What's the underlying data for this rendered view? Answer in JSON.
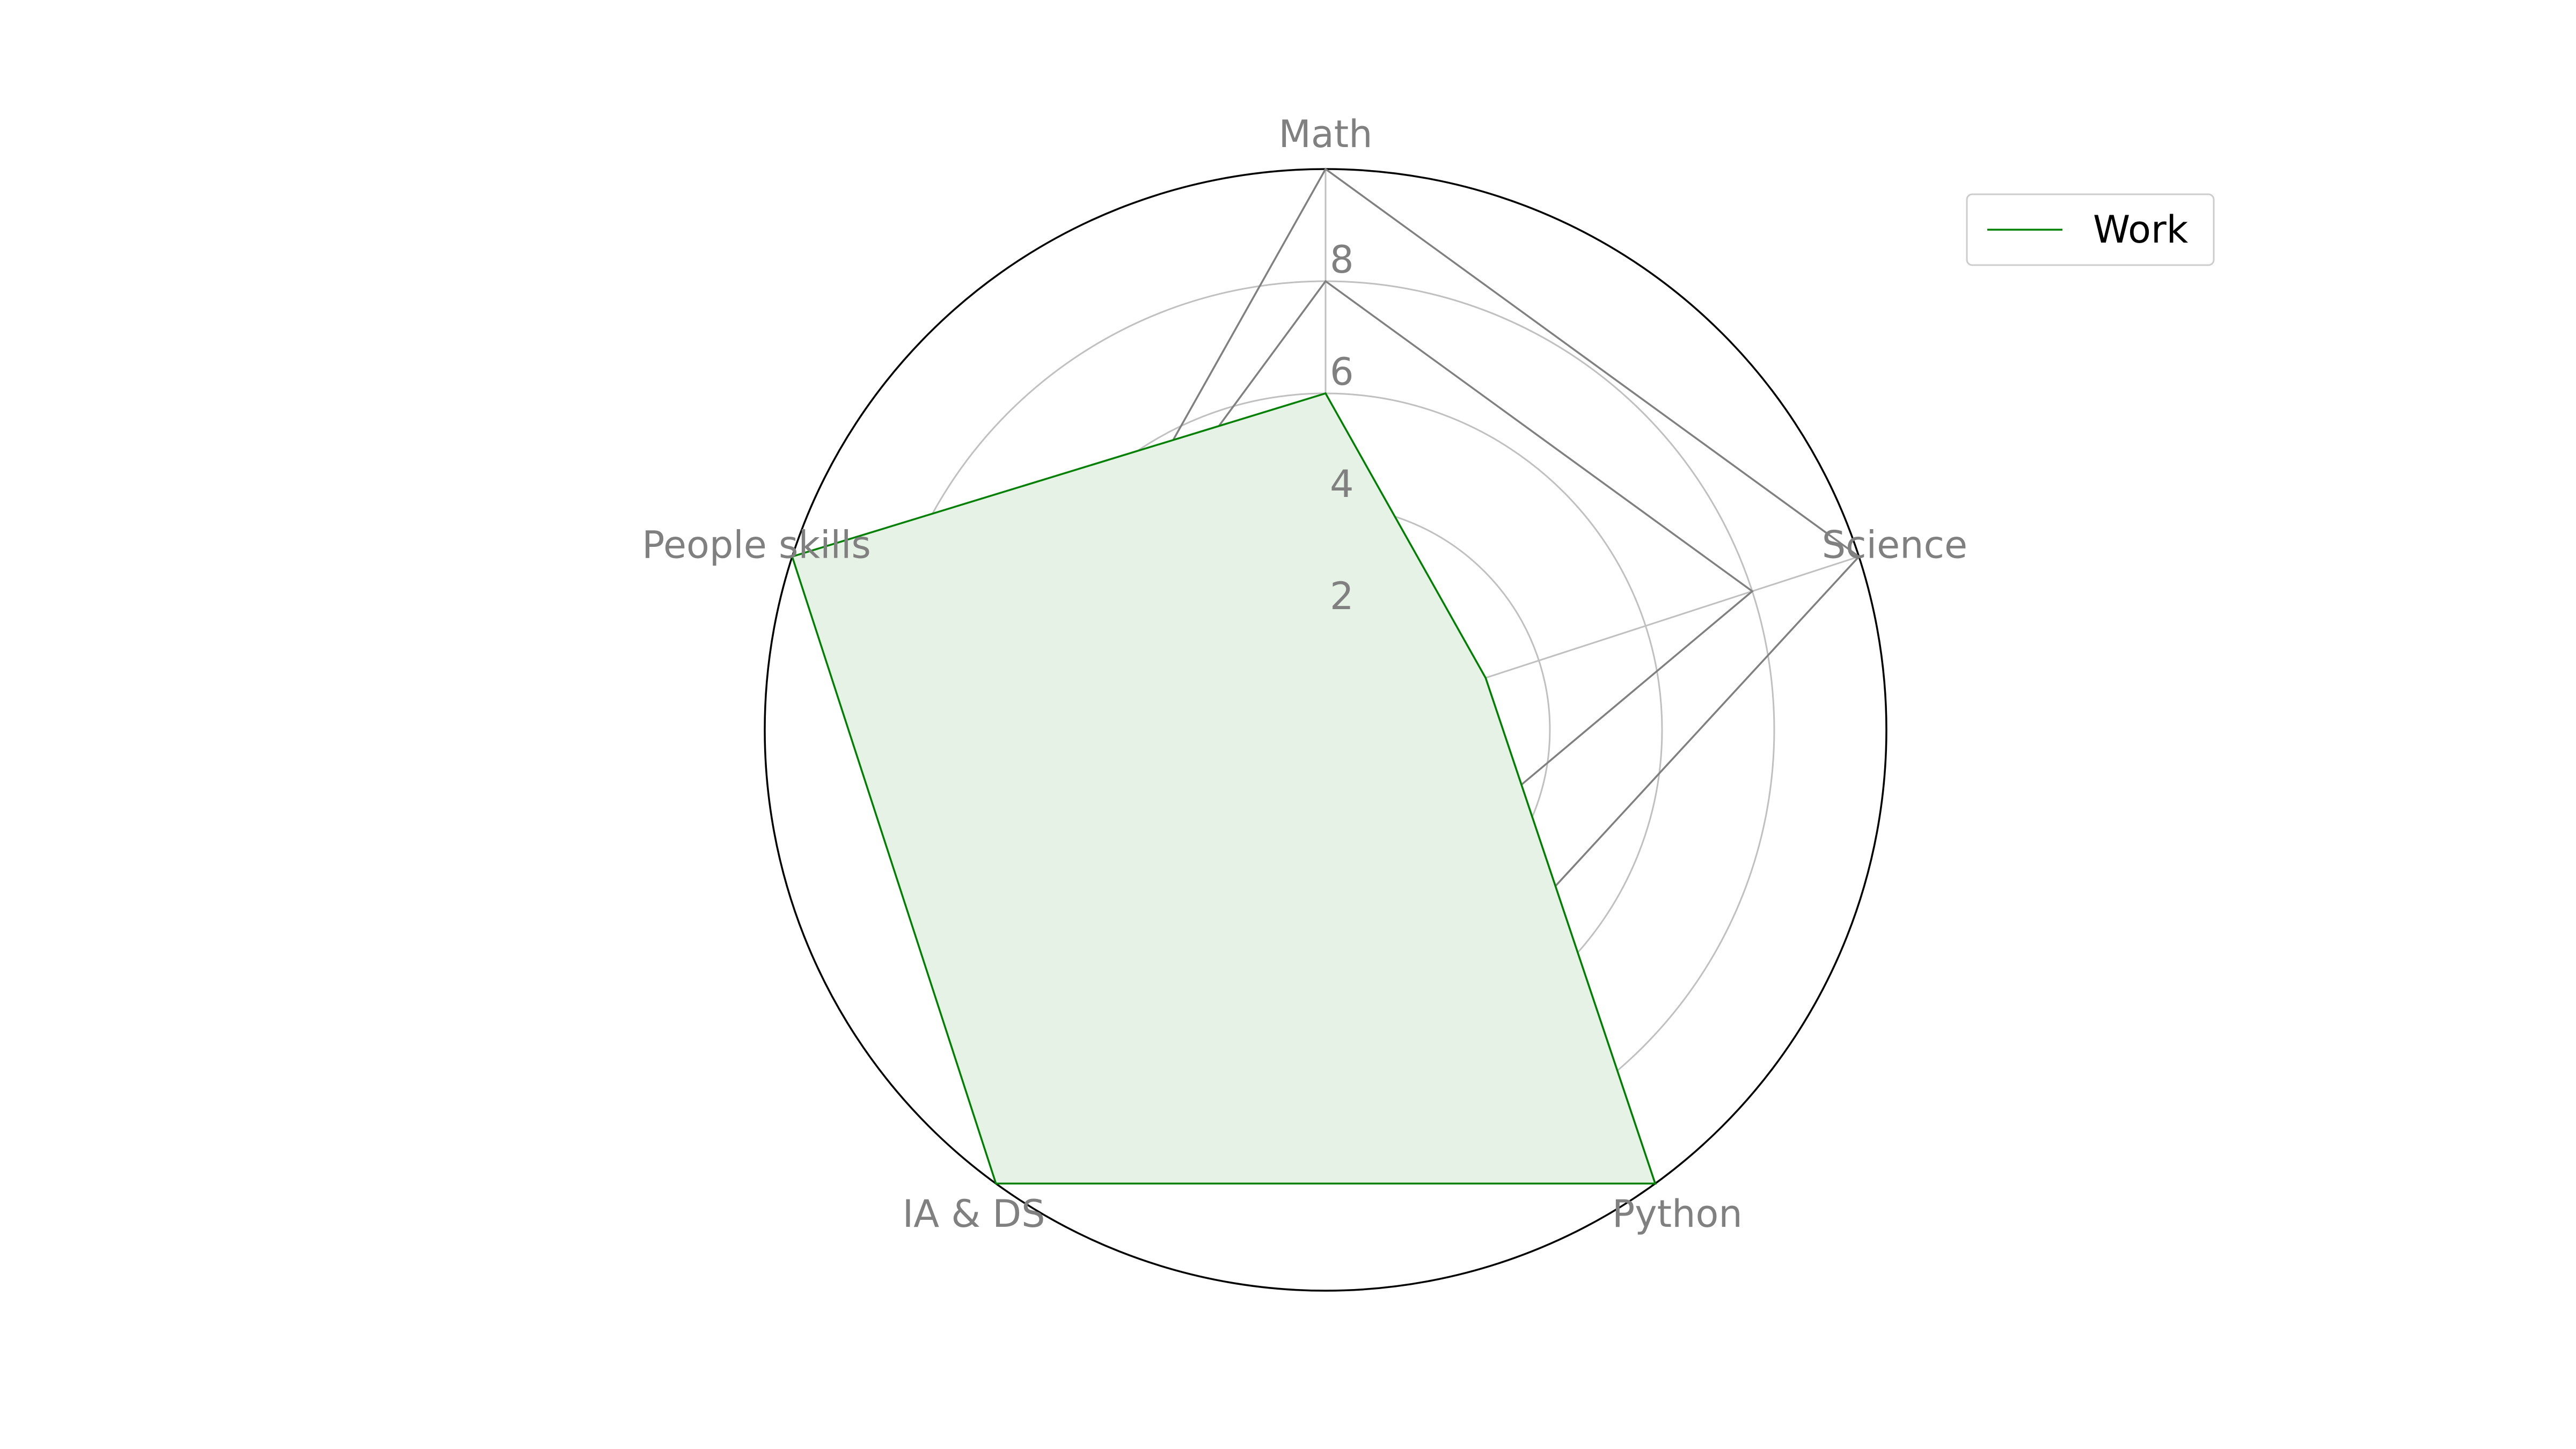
{
  "chart_data": {
    "type": "radar",
    "categories": [
      "Math",
      "Science",
      "Python",
      "IA & DS",
      "People skills"
    ],
    "rlim": [
      0,
      10
    ],
    "rticks": [
      2,
      4,
      6,
      8
    ],
    "rtick_labels": [
      "2",
      "4",
      "6",
      "8"
    ],
    "grid": true,
    "legend_position": "top-right",
    "series": [
      {
        "name": "",
        "values": [
          10,
          10,
          5,
          1,
          5
        ],
        "color": "#808080",
        "fill": false
      },
      {
        "name": "",
        "values": [
          8,
          8,
          3,
          1,
          5
        ],
        "color": "#808080",
        "fill": false
      },
      {
        "name": "",
        "values": [
          1,
          3,
          10,
          8,
          5
        ],
        "color": "#808080",
        "fill": false
      },
      {
        "name": "Work",
        "values": [
          6,
          3,
          10,
          10,
          10
        ],
        "color": "#008000",
        "fill": true,
        "fill_color": "#e5f2e5"
      }
    ]
  },
  "colors": {
    "axis_label": "#808080",
    "grid": "#c0c0c0",
    "frame": "#000000"
  }
}
